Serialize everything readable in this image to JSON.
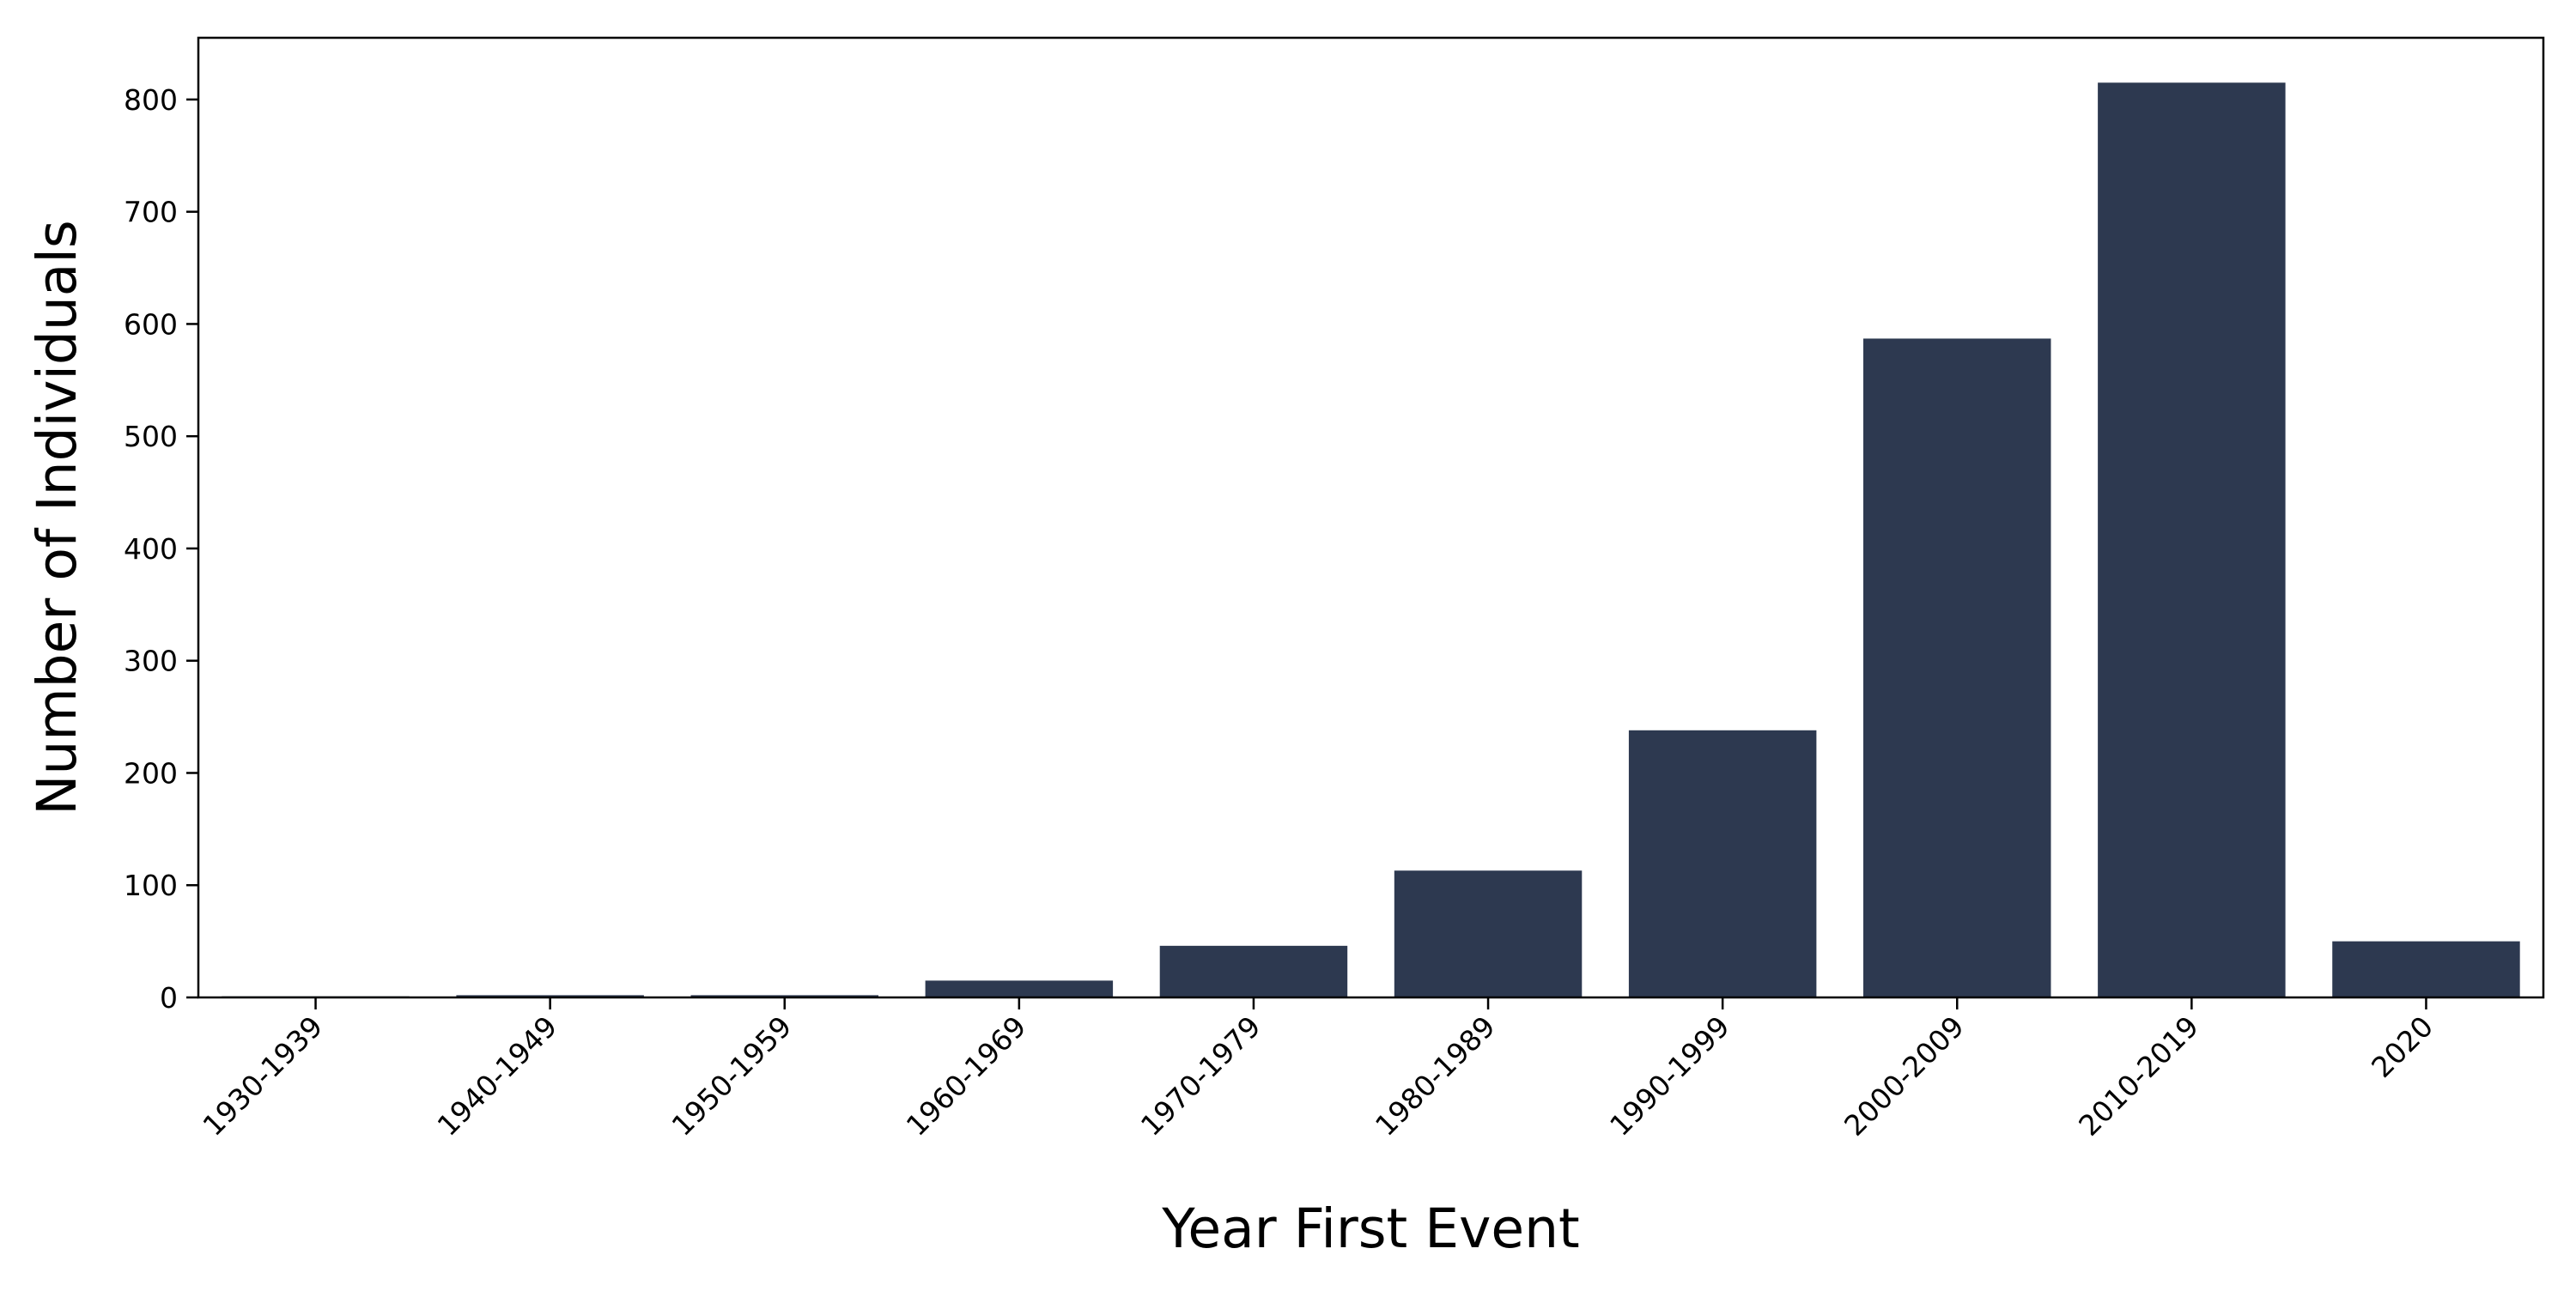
{
  "chart_data": {
    "type": "bar",
    "categories": [
      "1930-1939",
      "1940-1949",
      "1950-1959",
      "1960-1969",
      "1970-1979",
      "1980-1989",
      "1990-1999",
      "2000-2009",
      "2010-2019",
      "2020"
    ],
    "values": [
      1,
      2,
      2,
      15,
      46,
      113,
      238,
      587,
      815,
      50
    ],
    "xlabel": "Year First Event",
    "ylabel": "Number of Individuals",
    "ylim": [
      0,
      855
    ],
    "yticks": [
      0,
      100,
      200,
      300,
      400,
      500,
      600,
      700,
      800
    ],
    "grid": false,
    "bar_color": "#2d3950",
    "legend": "none"
  }
}
